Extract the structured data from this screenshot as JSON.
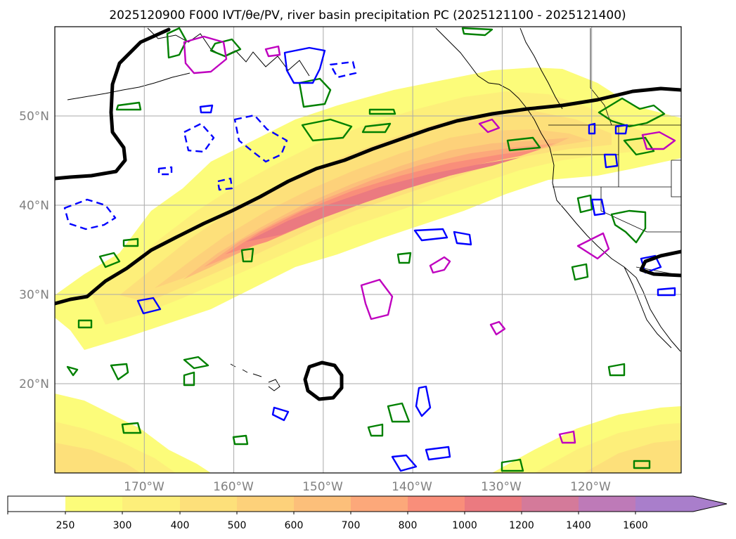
{
  "title": "2025120900 F000 IVT/θe/PV, river basin precipitation PC (2025121100 - 2025121400)",
  "map": {
    "lon_labels": [
      "170°W",
      "160°W",
      "150°W",
      "140°W",
      "130°W",
      "120°W"
    ],
    "lat_labels": [
      "50°N",
      "40°N",
      "30°N",
      "20°N"
    ],
    "lon_values": [
      -170,
      -160,
      -150,
      -140,
      -130,
      -120
    ],
    "lat_values": [
      50,
      40,
      30,
      20
    ],
    "extent": {
      "lon_min": -180,
      "lon_max": -110,
      "lat_min": 10,
      "lat_max": 60
    },
    "gridlines": true,
    "contour_colors": {
      "green": "#008000",
      "blue": "#0000ff",
      "magenta": "#bf00bf",
      "black": "#000000"
    }
  },
  "colorbar": {
    "ticks": [
      "250",
      "300",
      "400",
      "500",
      "600",
      "700",
      "800",
      "1000",
      "1200",
      "1400",
      "1600"
    ],
    "colors": [
      "#ffffff",
      "#fcfc7a",
      "#fdef7a",
      "#fde07a",
      "#fdd17a",
      "#fcbf7a",
      "#fca87a",
      "#f98e7a",
      "#eb7a80",
      "#d47a9a",
      "#be7ab8",
      "#a97ecb"
    ],
    "extend": "max"
  },
  "chart_data": {
    "type": "map",
    "title": "2025120900 F000 IVT/θe/PV, river basin precipitation PC (2025121100 - 2025121400)",
    "xlabel": "",
    "ylabel": "",
    "x_ticks": [
      "170°W",
      "160°W",
      "150°W",
      "140°W",
      "130°W",
      "120°W"
    ],
    "y_ticks": [
      "50°N",
      "40°N",
      "30°N",
      "20°N"
    ],
    "colorbar_levels": [
      250,
      300,
      400,
      500,
      600,
      700,
      800,
      1000,
      1200,
      1400,
      1600
    ],
    "grid": true
  }
}
